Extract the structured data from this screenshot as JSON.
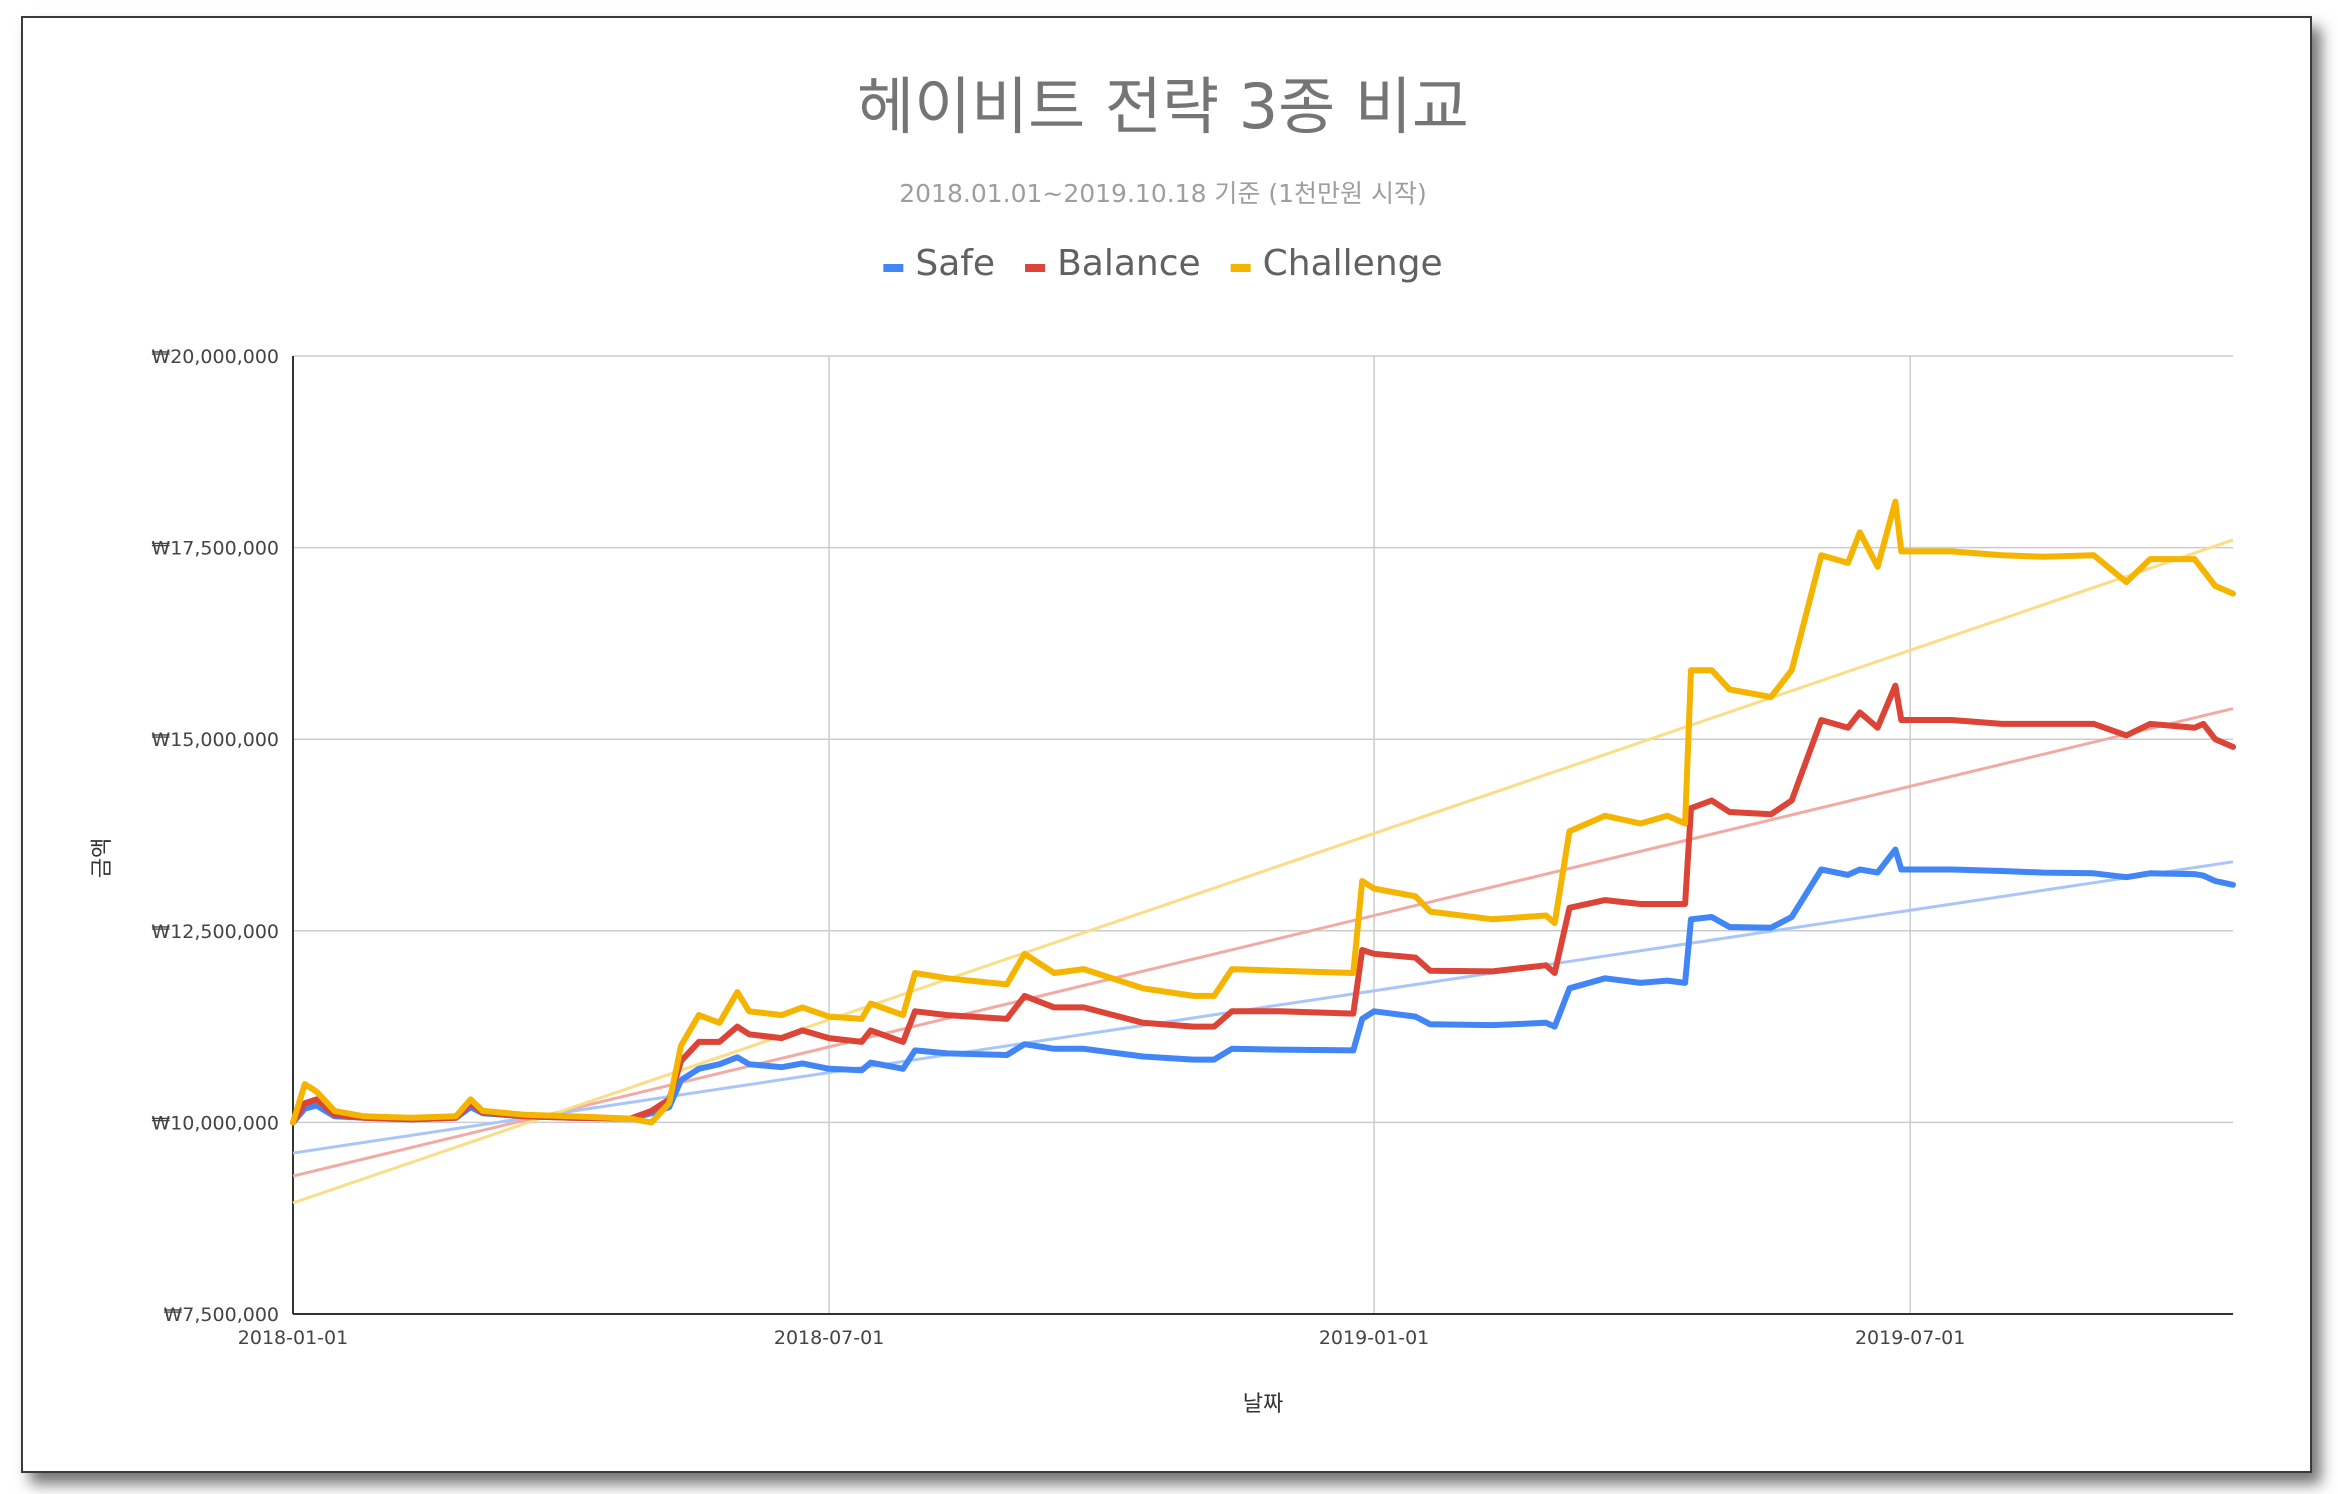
{
  "chart_data": {
    "type": "line",
    "title": "헤이비트 전략 3종 비교",
    "subtitle": "2018.01.01~2019.10.18 기준 (1천만원 시작)",
    "xlabel": "날짜",
    "ylabel": "금액",
    "ylim": [
      7500000,
      20000000
    ],
    "xlim": [
      "2018-01-01",
      "2019-10-18"
    ],
    "y_ticks": [
      {
        "value": 7500000,
        "label": "₩7,500,000"
      },
      {
        "value": 10000000,
        "label": "₩10,000,000"
      },
      {
        "value": 12500000,
        "label": "₩12,500,000"
      },
      {
        "value": 15000000,
        "label": "₩15,000,000"
      },
      {
        "value": 17500000,
        "label": "₩17,500,000"
      },
      {
        "value": 20000000,
        "label": "₩20,000,000"
      }
    ],
    "x_ticks": [
      {
        "value": "2018-01-01",
        "label": "2018-01-01"
      },
      {
        "value": "2018-07-01",
        "label": "2018-07-01"
      },
      {
        "value": "2019-01-01",
        "label": "2019-01-01"
      },
      {
        "value": "2019-07-01",
        "label": "2019-07-01"
      }
    ],
    "grid": true,
    "legend_position": "top",
    "series": [
      {
        "name": "Safe",
        "color": "#4285f4",
        "trend_color": "#a8c6fa",
        "trendline": [
          [
            "2018-01-01",
            9600000
          ],
          [
            "2019-10-18",
            13400000
          ]
        ],
        "points": [
          [
            "2018-01-01",
            10000000
          ],
          [
            "2018-01-05",
            10180000
          ],
          [
            "2018-01-09",
            10220000
          ],
          [
            "2018-01-15",
            10080000
          ],
          [
            "2018-01-25",
            10060000
          ],
          [
            "2018-02-10",
            10040000
          ],
          [
            "2018-02-25",
            10060000
          ],
          [
            "2018-03-02",
            10200000
          ],
          [
            "2018-03-06",
            10120000
          ],
          [
            "2018-03-20",
            10080000
          ],
          [
            "2018-04-05",
            10060000
          ],
          [
            "2018-04-25",
            10050000
          ],
          [
            "2018-05-02",
            10120000
          ],
          [
            "2018-05-08",
            10200000
          ],
          [
            "2018-05-12",
            10550000
          ],
          [
            "2018-05-18",
            10700000
          ],
          [
            "2018-05-25",
            10760000
          ],
          [
            "2018-05-31",
            10850000
          ],
          [
            "2018-06-04",
            10760000
          ],
          [
            "2018-06-15",
            10720000
          ],
          [
            "2018-06-22",
            10770000
          ],
          [
            "2018-07-01",
            10700000
          ],
          [
            "2018-07-12",
            10680000
          ],
          [
            "2018-07-15",
            10780000
          ],
          [
            "2018-07-26",
            10700000
          ],
          [
            "2018-07-30",
            10940000
          ],
          [
            "2018-08-10",
            10900000
          ],
          [
            "2018-08-30",
            10880000
          ],
          [
            "2018-09-05",
            11020000
          ],
          [
            "2018-09-15",
            10960000
          ],
          [
            "2018-09-25",
            10960000
          ],
          [
            "2018-10-15",
            10860000
          ],
          [
            "2018-11-01",
            10820000
          ],
          [
            "2018-11-08",
            10820000
          ],
          [
            "2018-11-14",
            10960000
          ],
          [
            "2018-11-30",
            10950000
          ],
          [
            "2018-12-25",
            10940000
          ],
          [
            "2018-12-28",
            11350000
          ],
          [
            "2019-01-01",
            11450000
          ],
          [
            "2019-01-15",
            11380000
          ],
          [
            "2019-01-20",
            11280000
          ],
          [
            "2019-02-10",
            11270000
          ],
          [
            "2019-02-28",
            11300000
          ],
          [
            "2019-03-03",
            11250000
          ],
          [
            "2019-03-08",
            11750000
          ],
          [
            "2019-03-20",
            11880000
          ],
          [
            "2019-04-01",
            11820000
          ],
          [
            "2019-04-10",
            11850000
          ],
          [
            "2019-04-16",
            11820000
          ],
          [
            "2019-04-18",
            12650000
          ],
          [
            "2019-04-25",
            12680000
          ],
          [
            "2019-05-01",
            12550000
          ],
          [
            "2019-05-15",
            12540000
          ],
          [
            "2019-05-22",
            12680000
          ],
          [
            "2019-06-01",
            13300000
          ],
          [
            "2019-06-10",
            13230000
          ],
          [
            "2019-06-14",
            13300000
          ],
          [
            "2019-06-20",
            13260000
          ],
          [
            "2019-06-26",
            13560000
          ],
          [
            "2019-06-28",
            13300000
          ],
          [
            "2019-07-15",
            13300000
          ],
          [
            "2019-08-01",
            13280000
          ],
          [
            "2019-08-15",
            13260000
          ],
          [
            "2019-09-01",
            13250000
          ],
          [
            "2019-09-12",
            13200000
          ],
          [
            "2019-09-20",
            13250000
          ],
          [
            "2019-10-05",
            13240000
          ],
          [
            "2019-10-08",
            13220000
          ],
          [
            "2019-10-12",
            13150000
          ],
          [
            "2019-10-18",
            13100000
          ]
        ]
      },
      {
        "name": "Balance",
        "color": "#db4437",
        "trend_color": "#f2aaa4",
        "trendline": [
          [
            "2018-01-01",
            9300000
          ],
          [
            "2019-10-18",
            15400000
          ]
        ],
        "points": [
          [
            "2018-01-01",
            10000000
          ],
          [
            "2018-01-05",
            10250000
          ],
          [
            "2018-01-09",
            10300000
          ],
          [
            "2018-01-15",
            10100000
          ],
          [
            "2018-01-25",
            10060000
          ],
          [
            "2018-02-10",
            10040000
          ],
          [
            "2018-02-25",
            10060000
          ],
          [
            "2018-03-02",
            10250000
          ],
          [
            "2018-03-06",
            10130000
          ],
          [
            "2018-03-20",
            10080000
          ],
          [
            "2018-04-05",
            10060000
          ],
          [
            "2018-04-25",
            10050000
          ],
          [
            "2018-05-02",
            10150000
          ],
          [
            "2018-05-08",
            10300000
          ],
          [
            "2018-05-12",
            10800000
          ],
          [
            "2018-05-18",
            11050000
          ],
          [
            "2018-05-25",
            11050000
          ],
          [
            "2018-05-31",
            11250000
          ],
          [
            "2018-06-04",
            11150000
          ],
          [
            "2018-06-15",
            11100000
          ],
          [
            "2018-06-22",
            11200000
          ],
          [
            "2018-07-01",
            11100000
          ],
          [
            "2018-07-12",
            11050000
          ],
          [
            "2018-07-15",
            11200000
          ],
          [
            "2018-07-26",
            11050000
          ],
          [
            "2018-07-30",
            11450000
          ],
          [
            "2018-08-10",
            11400000
          ],
          [
            "2018-08-30",
            11350000
          ],
          [
            "2018-09-05",
            11650000
          ],
          [
            "2018-09-15",
            11500000
          ],
          [
            "2018-09-25",
            11500000
          ],
          [
            "2018-10-15",
            11300000
          ],
          [
            "2018-11-01",
            11250000
          ],
          [
            "2018-11-08",
            11250000
          ],
          [
            "2018-11-14",
            11450000
          ],
          [
            "2018-11-30",
            11450000
          ],
          [
            "2018-12-25",
            11420000
          ],
          [
            "2018-12-28",
            12250000
          ],
          [
            "2019-01-01",
            12200000
          ],
          [
            "2019-01-15",
            12150000
          ],
          [
            "2019-01-20",
            11980000
          ],
          [
            "2019-02-10",
            11970000
          ],
          [
            "2019-02-28",
            12050000
          ],
          [
            "2019-03-03",
            11950000
          ],
          [
            "2019-03-08",
            12800000
          ],
          [
            "2019-03-20",
            12900000
          ],
          [
            "2019-04-01",
            12850000
          ],
          [
            "2019-04-10",
            12850000
          ],
          [
            "2019-04-16",
            12850000
          ],
          [
            "2019-04-18",
            14100000
          ],
          [
            "2019-04-25",
            14200000
          ],
          [
            "2019-05-01",
            14050000
          ],
          [
            "2019-05-15",
            14020000
          ],
          [
            "2019-05-22",
            14200000
          ],
          [
            "2019-06-01",
            15250000
          ],
          [
            "2019-06-10",
            15150000
          ],
          [
            "2019-06-14",
            15350000
          ],
          [
            "2019-06-20",
            15150000
          ],
          [
            "2019-06-26",
            15700000
          ],
          [
            "2019-06-28",
            15250000
          ],
          [
            "2019-07-15",
            15250000
          ],
          [
            "2019-08-01",
            15200000
          ],
          [
            "2019-08-15",
            15200000
          ],
          [
            "2019-09-01",
            15200000
          ],
          [
            "2019-09-12",
            15050000
          ],
          [
            "2019-09-20",
            15200000
          ],
          [
            "2019-10-05",
            15150000
          ],
          [
            "2019-10-08",
            15200000
          ],
          [
            "2019-10-12",
            15000000
          ],
          [
            "2019-10-18",
            14900000
          ]
        ]
      },
      {
        "name": "Challenge",
        "color": "#f4b400",
        "trend_color": "#fadd86",
        "trendline": [
          [
            "2018-01-01",
            8950000
          ],
          [
            "2019-10-18",
            17600000
          ]
        ],
        "points": [
          [
            "2018-01-01",
            10000000
          ],
          [
            "2018-01-05",
            10500000
          ],
          [
            "2018-01-09",
            10400000
          ],
          [
            "2018-01-15",
            10150000
          ],
          [
            "2018-01-25",
            10080000
          ],
          [
            "2018-02-10",
            10060000
          ],
          [
            "2018-02-25",
            10080000
          ],
          [
            "2018-03-02",
            10300000
          ],
          [
            "2018-03-06",
            10150000
          ],
          [
            "2018-03-20",
            10100000
          ],
          [
            "2018-04-05",
            10080000
          ],
          [
            "2018-04-25",
            10050000
          ],
          [
            "2018-05-02",
            10000000
          ],
          [
            "2018-05-08",
            10250000
          ],
          [
            "2018-05-12",
            11000000
          ],
          [
            "2018-05-18",
            11400000
          ],
          [
            "2018-05-25",
            11300000
          ],
          [
            "2018-05-31",
            11700000
          ],
          [
            "2018-06-04",
            11450000
          ],
          [
            "2018-06-15",
            11400000
          ],
          [
            "2018-06-22",
            11500000
          ],
          [
            "2018-07-01",
            11380000
          ],
          [
            "2018-07-12",
            11350000
          ],
          [
            "2018-07-15",
            11550000
          ],
          [
            "2018-07-26",
            11400000
          ],
          [
            "2018-07-30",
            11950000
          ],
          [
            "2018-08-10",
            11880000
          ],
          [
            "2018-08-30",
            11800000
          ],
          [
            "2018-09-05",
            12200000
          ],
          [
            "2018-09-15",
            11950000
          ],
          [
            "2018-09-25",
            12000000
          ],
          [
            "2018-10-15",
            11750000
          ],
          [
            "2018-11-01",
            11650000
          ],
          [
            "2018-11-08",
            11650000
          ],
          [
            "2018-11-14",
            12000000
          ],
          [
            "2018-11-30",
            11980000
          ],
          [
            "2018-12-25",
            11950000
          ],
          [
            "2018-12-28",
            13150000
          ],
          [
            "2019-01-01",
            13050000
          ],
          [
            "2019-01-15",
            12950000
          ],
          [
            "2019-01-20",
            12750000
          ],
          [
            "2019-02-10",
            12650000
          ],
          [
            "2019-02-28",
            12700000
          ],
          [
            "2019-03-03",
            12600000
          ],
          [
            "2019-03-08",
            13800000
          ],
          [
            "2019-03-20",
            14000000
          ],
          [
            "2019-04-01",
            13900000
          ],
          [
            "2019-04-10",
            14000000
          ],
          [
            "2019-04-16",
            13900000
          ],
          [
            "2019-04-18",
            15900000
          ],
          [
            "2019-04-25",
            15900000
          ],
          [
            "2019-05-01",
            15650000
          ],
          [
            "2019-05-15",
            15550000
          ],
          [
            "2019-05-22",
            15900000
          ],
          [
            "2019-06-01",
            17400000
          ],
          [
            "2019-06-10",
            17300000
          ],
          [
            "2019-06-14",
            17700000
          ],
          [
            "2019-06-20",
            17250000
          ],
          [
            "2019-06-26",
            18100000
          ],
          [
            "2019-06-28",
            17450000
          ],
          [
            "2019-07-15",
            17450000
          ],
          [
            "2019-08-01",
            17400000
          ],
          [
            "2019-08-15",
            17380000
          ],
          [
            "2019-09-01",
            17400000
          ],
          [
            "2019-09-12",
            17050000
          ],
          [
            "2019-09-20",
            17350000
          ],
          [
            "2019-10-05",
            17350000
          ],
          [
            "2019-10-08",
            17200000
          ],
          [
            "2019-10-12",
            17000000
          ],
          [
            "2019-10-18",
            16900000
          ]
        ]
      }
    ]
  }
}
